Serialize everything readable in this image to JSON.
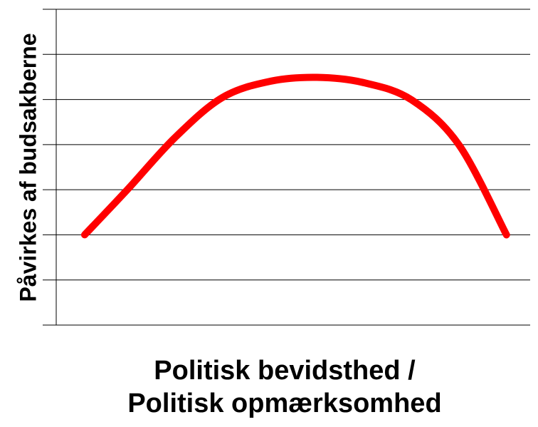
{
  "chart_data": {
    "type": "line",
    "title": "",
    "xlabel_lines": [
      "Politisk bevidsthed /",
      "Politisk opmærksomhed"
    ],
    "ylabel": "Påvirkes af budsakberne",
    "ylim": [
      0,
      7
    ],
    "xlim": [
      0,
      10
    ],
    "grid": true,
    "x": [
      0.6,
      1.5,
      2.5,
      3.5,
      4.5,
      5.5,
      6.5,
      7.5,
      8.5,
      9.5
    ],
    "series": [
      {
        "values": [
          2.0,
          3.0,
          4.15,
          5.04,
          5.4,
          5.49,
          5.37,
          4.99,
          3.99,
          2.0
        ],
        "color": "#ff0000"
      }
    ]
  }
}
